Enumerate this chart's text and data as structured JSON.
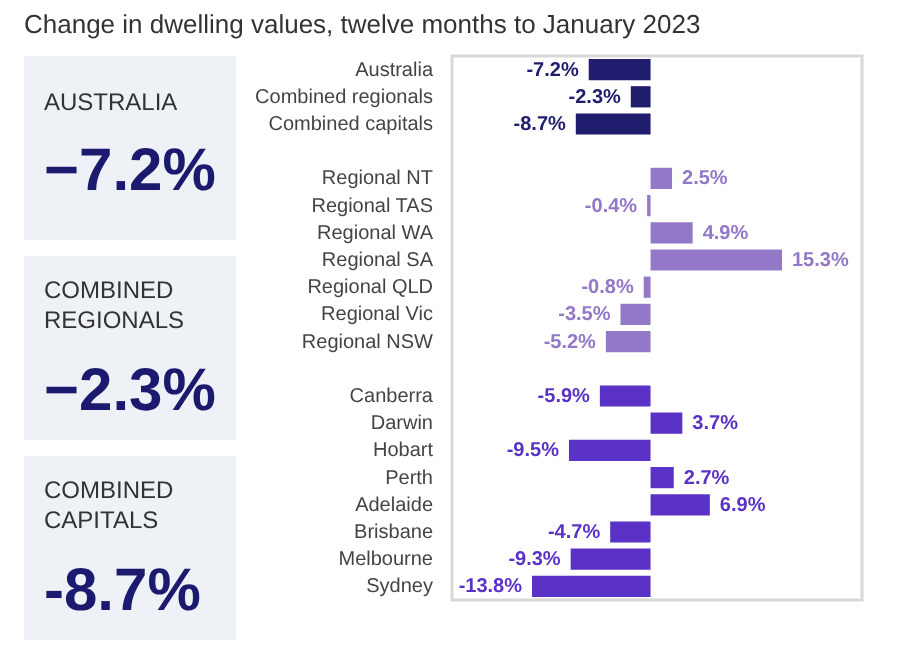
{
  "chart_data": [
    {
      "type": "other",
      "title": "AUSTRALIA",
      "annotations": [
        "−7.2%"
      ]
    },
    {
      "type": "other",
      "title": "COMBINED REGIONALS",
      "annotations": [
        "−2.3%"
      ]
    },
    {
      "type": "other",
      "title": "COMBINED CAPITALS",
      "annotations": [
        "-8.7%"
      ]
    },
    {
      "type": "bar",
      "orientation": "horizontal",
      "title": "Change in dwelling values, twelve months to January 2023",
      "categories": [
        "Australia",
        "Combined regionals",
        "Combined capitals",
        null,
        "Regional NT",
        "Regional TAS",
        "Regional WA",
        "Regional SA",
        "Regional QLD",
        "Regional Vic",
        "Regional NSW",
        null,
        "Canberra",
        "Darwin",
        "Hobart",
        "Perth",
        "Adelaide",
        "Brisbane",
        "Melbourne",
        "Sydney"
      ],
      "values": [
        -7.2,
        -2.3,
        -8.7,
        null,
        2.5,
        -0.4,
        4.9,
        15.3,
        -0.8,
        -3.5,
        -5.2,
        null,
        -5.9,
        3.7,
        -9.5,
        2.7,
        6.9,
        -4.7,
        -9.3,
        -13.8
      ],
      "value_labels": [
        "-7.2%",
        "-2.3%",
        "-8.7%",
        null,
        "2.5%",
        "-0.4%",
        "4.9%",
        "15.3%",
        "-0.8%",
        "-3.5%",
        "-5.2%",
        null,
        "-5.9%",
        "3.7%",
        "-9.5%",
        "2.7%",
        "6.9%",
        "-4.7%",
        "-9.3%",
        "-13.8%"
      ],
      "colors": [
        "#201c6e",
        "#201c6e",
        "#201c6e",
        null,
        "#9378c8",
        "#9378c8",
        "#9378c8",
        "#9378c8",
        "#9378c8",
        "#9378c8",
        "#9378c8",
        null,
        "#5a33c6",
        "#5a33c6",
        "#5a33c6",
        "#5a33c6",
        "#5a33c6",
        "#5a33c6",
        "#5a33c6",
        "#5a33c6"
      ]
    }
  ]
}
